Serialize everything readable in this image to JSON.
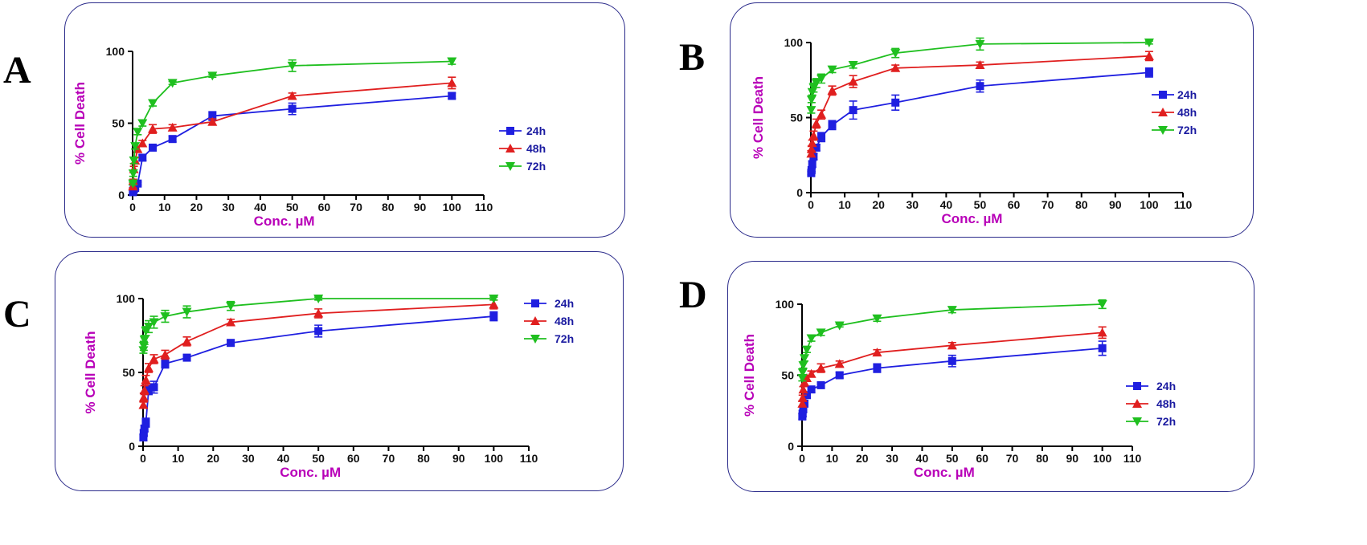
{
  "chart_data": [
    {
      "panel": "A",
      "type": "line",
      "xlabel": "Conc. µM",
      "ylabel": "% Cell Death",
      "xlim": [
        0,
        110
      ],
      "ylim": [
        0,
        100
      ],
      "xticks": [
        0,
        10,
        20,
        30,
        40,
        50,
        60,
        70,
        80,
        90,
        100,
        110
      ],
      "yticks": [
        0,
        50,
        100
      ],
      "legend_position": "right",
      "series": [
        {
          "name": "24h",
          "color": "#1f1fe0",
          "marker": "square",
          "x": [
            0.1,
            0.2,
            0.4,
            0.8,
            1.6,
            3.1,
            6.3,
            12.5,
            25,
            50,
            100
          ],
          "y": [
            2,
            3,
            4,
            5,
            8,
            26,
            33,
            39,
            55,
            60,
            69
          ],
          "err": [
            1,
            1,
            1,
            1,
            1,
            2,
            2,
            2,
            3,
            4,
            2
          ]
        },
        {
          "name": "48h",
          "color": "#e01f1f",
          "marker": "triangle-up",
          "x": [
            0.1,
            0.2,
            0.4,
            0.8,
            1.6,
            3.1,
            6.3,
            12.5,
            25,
            50,
            100
          ],
          "y": [
            6,
            10,
            18,
            24,
            32,
            36,
            46,
            47,
            51,
            69,
            78
          ],
          "err": [
            1,
            1,
            2,
            2,
            2,
            2,
            3,
            2,
            2,
            2,
            4
          ]
        },
        {
          "name": "72h",
          "color": "#1fbf1f",
          "marker": "triangle-down",
          "x": [
            0.1,
            0.2,
            0.4,
            0.8,
            1.6,
            3.1,
            6.3,
            12.5,
            25,
            50,
            100
          ],
          "y": [
            8,
            15,
            24,
            34,
            44,
            50,
            64,
            78,
            83,
            90,
            93
          ],
          "err": [
            1,
            2,
            2,
            2,
            2,
            2,
            2,
            1,
            1,
            4,
            2
          ]
        }
      ]
    },
    {
      "panel": "B",
      "type": "line",
      "xlabel": "Conc. µM",
      "ylabel": "% Cell Death",
      "xlim": [
        0,
        110
      ],
      "ylim": [
        0,
        100
      ],
      "xticks": [
        0,
        10,
        20,
        30,
        40,
        50,
        60,
        70,
        80,
        90,
        100,
        110
      ],
      "yticks": [
        0,
        50,
        100
      ],
      "legend_position": "right",
      "series": [
        {
          "name": "24h",
          "color": "#1f1fe0",
          "marker": "square",
          "x": [
            0.1,
            0.2,
            0.4,
            0.8,
            1.6,
            3.1,
            6.3,
            12.5,
            25,
            50,
            100
          ],
          "y": [
            13,
            15,
            19,
            24,
            30,
            37,
            45,
            55,
            60,
            71,
            80
          ],
          "err": [
            1,
            1,
            2,
            2,
            2,
            3,
            3,
            6,
            5,
            4,
            3
          ]
        },
        {
          "name": "48h",
          "color": "#e01f1f",
          "marker": "triangle-up",
          "x": [
            0.1,
            0.2,
            0.4,
            0.8,
            1.6,
            3.1,
            6.3,
            12.5,
            25,
            50,
            100
          ],
          "y": [
            26,
            29,
            33,
            38,
            46,
            52,
            68,
            74,
            83,
            85,
            91
          ],
          "err": [
            2,
            2,
            2,
            3,
            3,
            3,
            3,
            4,
            2,
            2,
            3
          ]
        },
        {
          "name": "72h",
          "color": "#1fbf1f",
          "marker": "triangle-down",
          "x": [
            0.1,
            0.2,
            0.4,
            0.8,
            1.6,
            3.1,
            6.3,
            12.5,
            25,
            50,
            100
          ],
          "y": [
            55,
            62,
            67,
            70,
            73,
            76,
            82,
            85,
            93,
            99,
            100
          ],
          "err": [
            2,
            2,
            2,
            3,
            3,
            3,
            2,
            2,
            3,
            4,
            1
          ]
        }
      ]
    },
    {
      "panel": "C",
      "type": "line",
      "xlabel": "Conc. µM",
      "ylabel": "% Cell Death",
      "xlim": [
        0,
        110
      ],
      "ylim": [
        0,
        100
      ],
      "xticks": [
        0,
        10,
        20,
        30,
        40,
        50,
        60,
        70,
        80,
        90,
        100,
        110
      ],
      "yticks": [
        0,
        50,
        100
      ],
      "legend_position": "top-right",
      "series": [
        {
          "name": "24h",
          "color": "#1f1fe0",
          "marker": "square",
          "x": [
            0.1,
            0.2,
            0.4,
            0.8,
            1.6,
            3.1,
            6.3,
            12.5,
            25,
            50,
            100
          ],
          "y": [
            6,
            9,
            12,
            16,
            38,
            40,
            56,
            60,
            70,
            78,
            88
          ],
          "err": [
            2,
            2,
            2,
            3,
            3,
            4,
            3,
            2,
            2,
            4,
            3
          ]
        },
        {
          "name": "48h",
          "color": "#e01f1f",
          "marker": "triangle-up",
          "x": [
            0.1,
            0.2,
            0.4,
            0.8,
            1.6,
            3.1,
            6.3,
            12.5,
            25,
            50,
            100
          ],
          "y": [
            28,
            33,
            38,
            45,
            53,
            59,
            62,
            71,
            84,
            90,
            96
          ],
          "err": [
            2,
            3,
            3,
            3,
            3,
            3,
            3,
            3,
            2,
            3,
            3
          ]
        },
        {
          "name": "72h",
          "color": "#1fbf1f",
          "marker": "triangle-down",
          "x": [
            0.1,
            0.2,
            0.4,
            0.8,
            1.6,
            3.1,
            6.3,
            12.5,
            25,
            50,
            100
          ],
          "y": [
            65,
            68,
            72,
            78,
            81,
            84,
            88,
            91,
            95,
            100,
            100
          ],
          "err": [
            2,
            3,
            3,
            3,
            4,
            4,
            4,
            4,
            3,
            1,
            1
          ]
        }
      ]
    },
    {
      "panel": "D",
      "type": "line",
      "xlabel": "Conc. µM",
      "ylabel": "% Cell Death",
      "xlim": [
        0,
        110
      ],
      "ylim": [
        0,
        100
      ],
      "xticks": [
        0,
        10,
        20,
        30,
        40,
        50,
        60,
        70,
        80,
        90,
        100,
        110
      ],
      "yticks": [
        0,
        50,
        100
      ],
      "legend_position": "bottom-right",
      "series": [
        {
          "name": "24h",
          "color": "#1f1fe0",
          "marker": "square",
          "x": [
            0.1,
            0.2,
            0.4,
            0.8,
            1.6,
            3.1,
            6.3,
            12.5,
            25,
            50,
            100
          ],
          "y": [
            21,
            23,
            26,
            30,
            36,
            40,
            43,
            50,
            55,
            60,
            69
          ],
          "err": [
            2,
            2,
            2,
            2,
            2,
            2,
            2,
            2,
            3,
            4,
            5
          ]
        },
        {
          "name": "48h",
          "color": "#e01f1f",
          "marker": "triangle-up",
          "x": [
            0.1,
            0.2,
            0.4,
            0.8,
            1.6,
            3.1,
            6.3,
            12.5,
            25,
            50,
            100
          ],
          "y": [
            30,
            34,
            40,
            45,
            48,
            51,
            55,
            58,
            66,
            71,
            80
          ],
          "err": [
            2,
            2,
            2,
            2,
            2,
            2,
            3,
            2,
            2,
            2,
            4
          ]
        },
        {
          "name": "72h",
          "color": "#1fbf1f",
          "marker": "triangle-down",
          "x": [
            0.1,
            0.2,
            0.4,
            0.8,
            1.6,
            3.1,
            6.3,
            12.5,
            25,
            50,
            100
          ],
          "y": [
            48,
            52,
            57,
            62,
            68,
            76,
            80,
            85,
            90,
            96,
            100
          ],
          "err": [
            2,
            2,
            2,
            2,
            2,
            2,
            2,
            1,
            2,
            2,
            3
          ]
        }
      ]
    }
  ]
}
